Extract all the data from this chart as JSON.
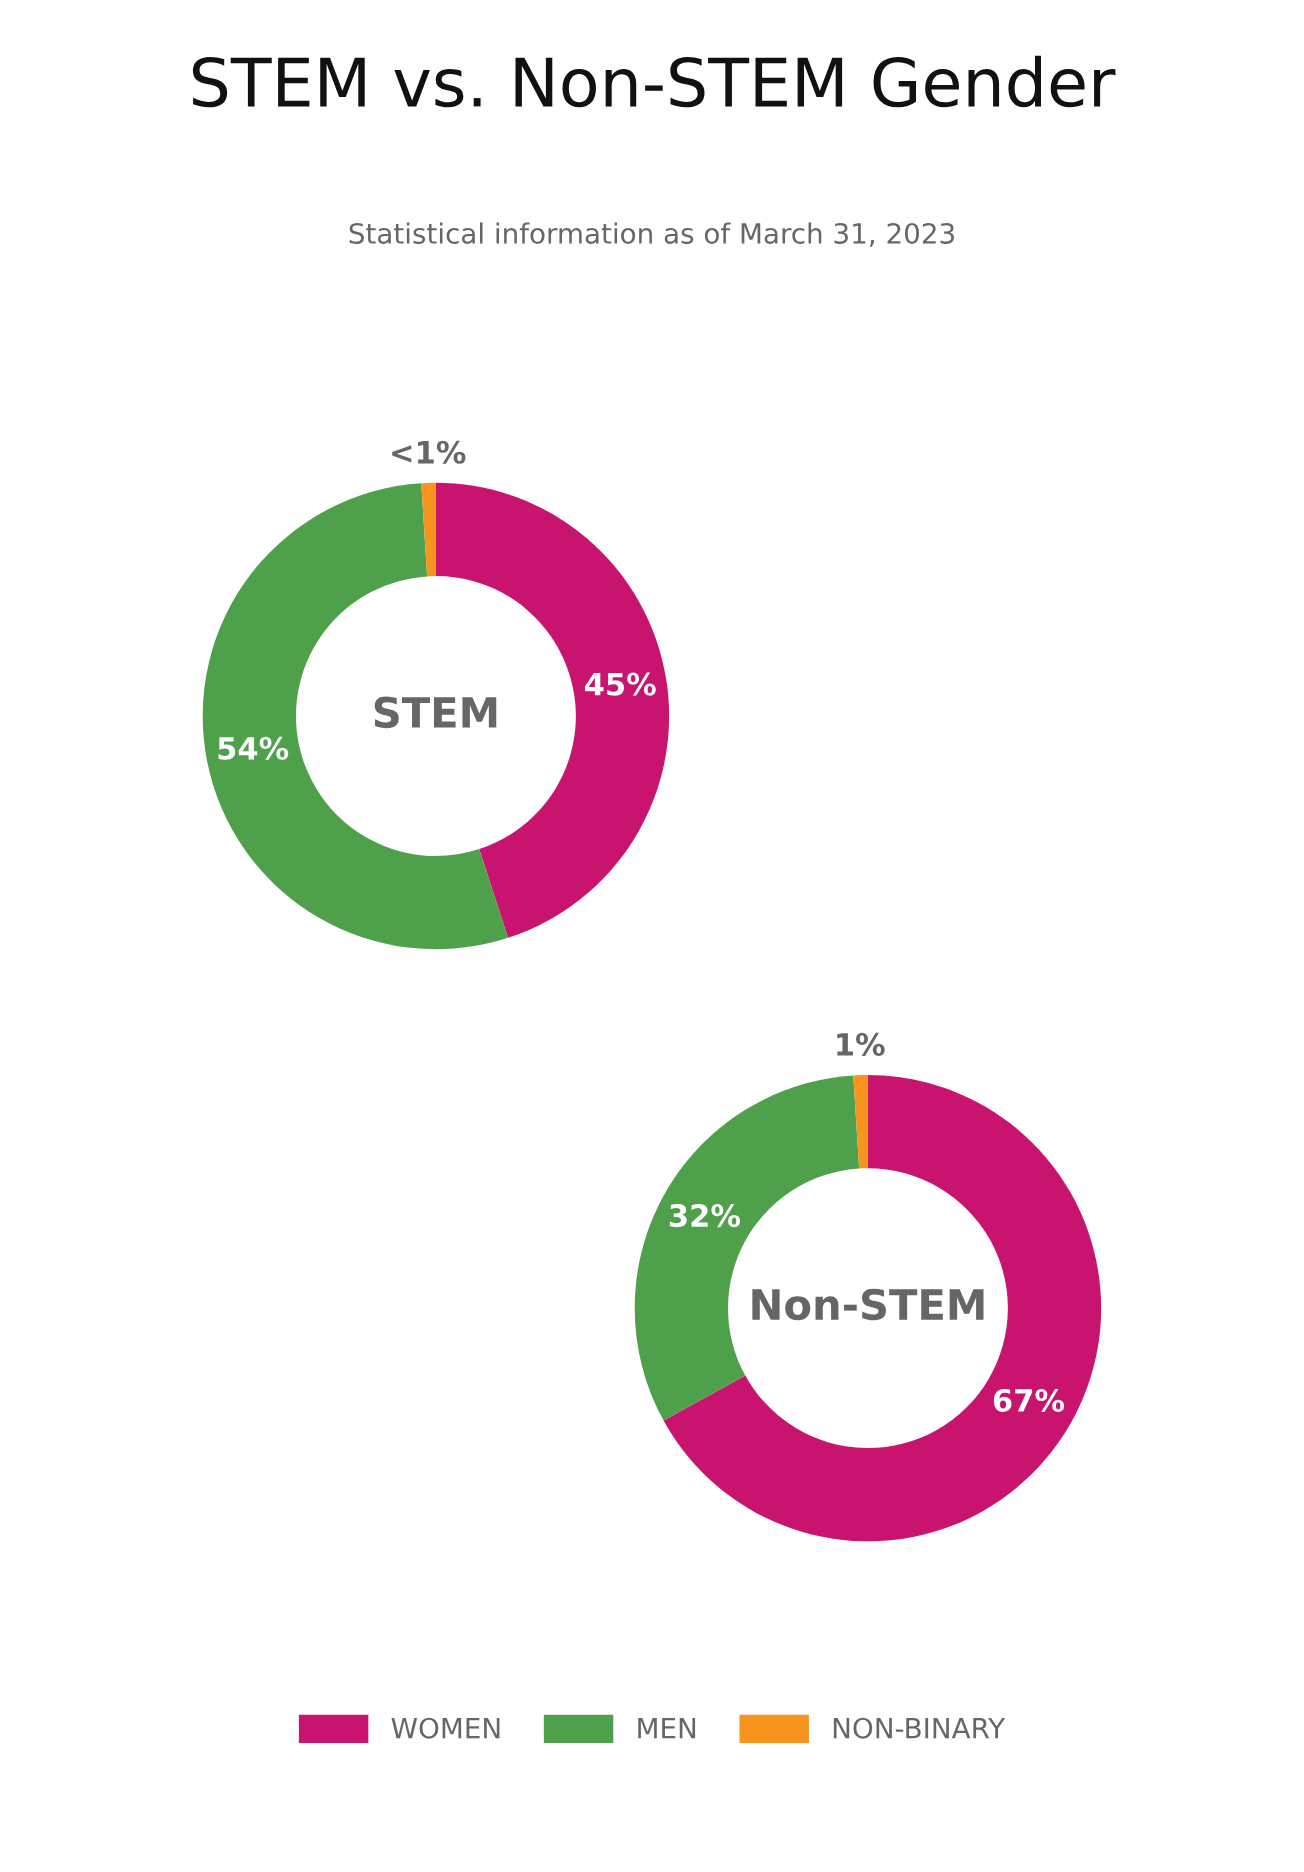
{
  "chart_data": [
    {
      "type": "donut",
      "title": "STEM vs. Non-STEM Gender",
      "subtitle": "Statistical information as of March 31, 2023",
      "annotations": [
        "STEM"
      ],
      "categories": [
        "WOMEN",
        "MEN",
        "NON-BINARY"
      ],
      "values": [
        45,
        54,
        1
      ],
      "value_labels": [
        "45%",
        "54%",
        "<1%"
      ],
      "colors": [
        "#c8146e",
        "#4fa04a",
        "#f7941d"
      ],
      "legend": "bottom"
    },
    {
      "type": "donut",
      "annotations": [
        "Non-STEM"
      ],
      "categories": [
        null,
        null,
        null
      ],
      "values": [
        67,
        32,
        1
      ],
      "value_labels": [
        "67%",
        "32%",
        "1%"
      ],
      "colors": [
        "#c8146e",
        "#4fa04a",
        "#f7941d"
      ]
    }
  ]
}
